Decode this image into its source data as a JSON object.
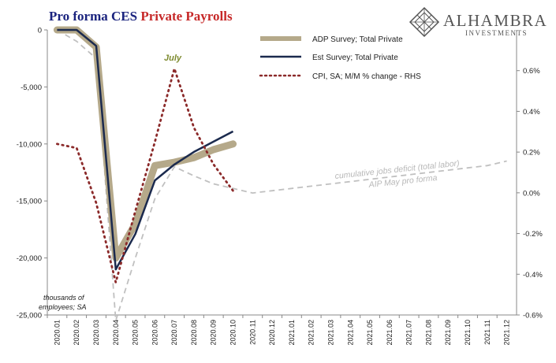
{
  "title": {
    "part1": "Pro forma CES ",
    "part2": "Private Payrolls",
    "color1": "#1a237e",
    "color2": "#c62828"
  },
  "logo": {
    "name": "ALHAMBRA",
    "sub": "INVESTMENTS",
    "icon": "diamond-lattice-icon"
  },
  "chart_data": {
    "type": "line",
    "x": [
      "2020.01",
      "2020.02",
      "2020.03",
      "2020.04",
      "2020.05",
      "2020.06",
      "2020.07",
      "2020.08",
      "2020.09",
      "2020.10",
      "2020.11",
      "2020.12",
      "2021.01",
      "2021.02",
      "2021.03",
      "2021.04",
      "2021.05",
      "2021.06",
      "2021.07",
      "2021.08",
      "2021.09",
      "2021.10",
      "2021.11",
      "2021.12"
    ],
    "y_left": {
      "ticks": [
        0,
        -5000,
        -10000,
        -15000,
        -20000,
        -25000
      ],
      "tick_labels": [
        "0",
        "-5,000",
        "-10,000",
        "-15,000",
        "-20,000",
        "-25,000"
      ],
      "ylim": [
        -25000,
        0
      ]
    },
    "y_right": {
      "ticks": [
        0.6,
        0.4,
        0.2,
        0.0,
        -0.2,
        -0.4,
        -0.6
      ],
      "tick_labels": [
        "0.6%",
        "0.4%",
        "0.2%",
        "0.0%",
        "-0.2%",
        "-0.4%",
        "-0.6%"
      ],
      "ylim": [
        -0.6,
        0.8
      ]
    },
    "series": [
      {
        "name": "ADP Survey; Total Private",
        "axis": "left",
        "color": "#b5a98a",
        "style": "thick",
        "values": [
          0,
          0,
          -1500,
          -20000,
          -17000,
          -11900,
          -11600,
          -11200,
          -10500,
          -10000,
          null,
          null,
          null,
          null,
          null,
          null,
          null,
          null,
          null,
          null,
          null,
          null,
          null,
          null
        ]
      },
      {
        "name": "Est Survey; Total Private",
        "axis": "left",
        "color": "#1b2a4e",
        "style": "solid",
        "values": [
          0,
          0,
          -1400,
          -21000,
          -17900,
          -13200,
          -11800,
          -10700,
          -9800,
          -8900,
          null,
          null,
          null,
          null,
          null,
          null,
          null,
          null,
          null,
          null,
          null,
          null,
          null,
          null
        ]
      },
      {
        "name": "CPI, SA; M/M % change - RHS",
        "axis": "right",
        "color": "#8b2a2a",
        "style": "dotted",
        "values": [
          0.24,
          0.22,
          -0.05,
          -0.44,
          -0.09,
          0.25,
          0.61,
          0.32,
          0.14,
          0.01,
          null,
          null,
          null,
          null,
          null,
          null,
          null,
          null,
          null,
          null,
          null,
          null,
          null,
          null
        ]
      },
      {
        "name": "",
        "axis": "left",
        "color": "#c0c0c0",
        "style": "dashed",
        "values": [
          0,
          -1000,
          -2500,
          -25500,
          -20000,
          -14800,
          -12000,
          -12800,
          -13500,
          -13900,
          -14300,
          -14100,
          -13900,
          -13700,
          -13500,
          -13300,
          -13100,
          -12900,
          -12700,
          -12500,
          -12300,
          -12100,
          -11900,
          -11500
        ]
      }
    ],
    "annotations": [
      {
        "text": "July",
        "color": "#7d8a2e"
      },
      {
        "text": "cumulative jobs deficit (total labor)",
        "color": "#b8b8b8"
      },
      {
        "text": "AIP May pro forma",
        "color": "#b8b8b8"
      },
      {
        "text": "thousands of",
        "color": "#222222"
      },
      {
        "text": "employees; SA",
        "color": "#222222"
      }
    ],
    "legend_placement": "top-center",
    "grid": false
  }
}
